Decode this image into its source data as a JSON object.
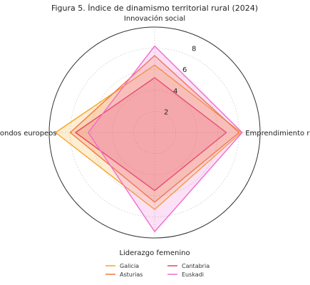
{
  "chart_data": {
    "type": "radar",
    "title": "Figura 5. Índice de dinamismo territorial rural (2024)",
    "axes": [
      "Innovación social",
      "Emprendimiento rural",
      "Liderazgo femenino",
      "Fondos europeos"
    ],
    "rlim": [
      0,
      10
    ],
    "rticks": [
      2,
      4,
      6,
      8
    ],
    "grid": true,
    "legend_position": "bottom",
    "series": [
      {
        "name": "Galicia",
        "values": [
          6.4,
          8.2,
          7.3,
          9.4
        ],
        "color": "#f5a623"
      },
      {
        "name": "Asturias",
        "values": [
          7.3,
          8.0,
          6.6,
          8.0
        ],
        "color": "#f07a3c"
      },
      {
        "name": "Cantabria",
        "values": [
          5.2,
          6.8,
          5.5,
          7.5
        ],
        "color": "#e8455a"
      },
      {
        "name": "Euskadi",
        "values": [
          8.2,
          8.3,
          9.4,
          6.3
        ],
        "color": "#f06bd0"
      }
    ]
  }
}
